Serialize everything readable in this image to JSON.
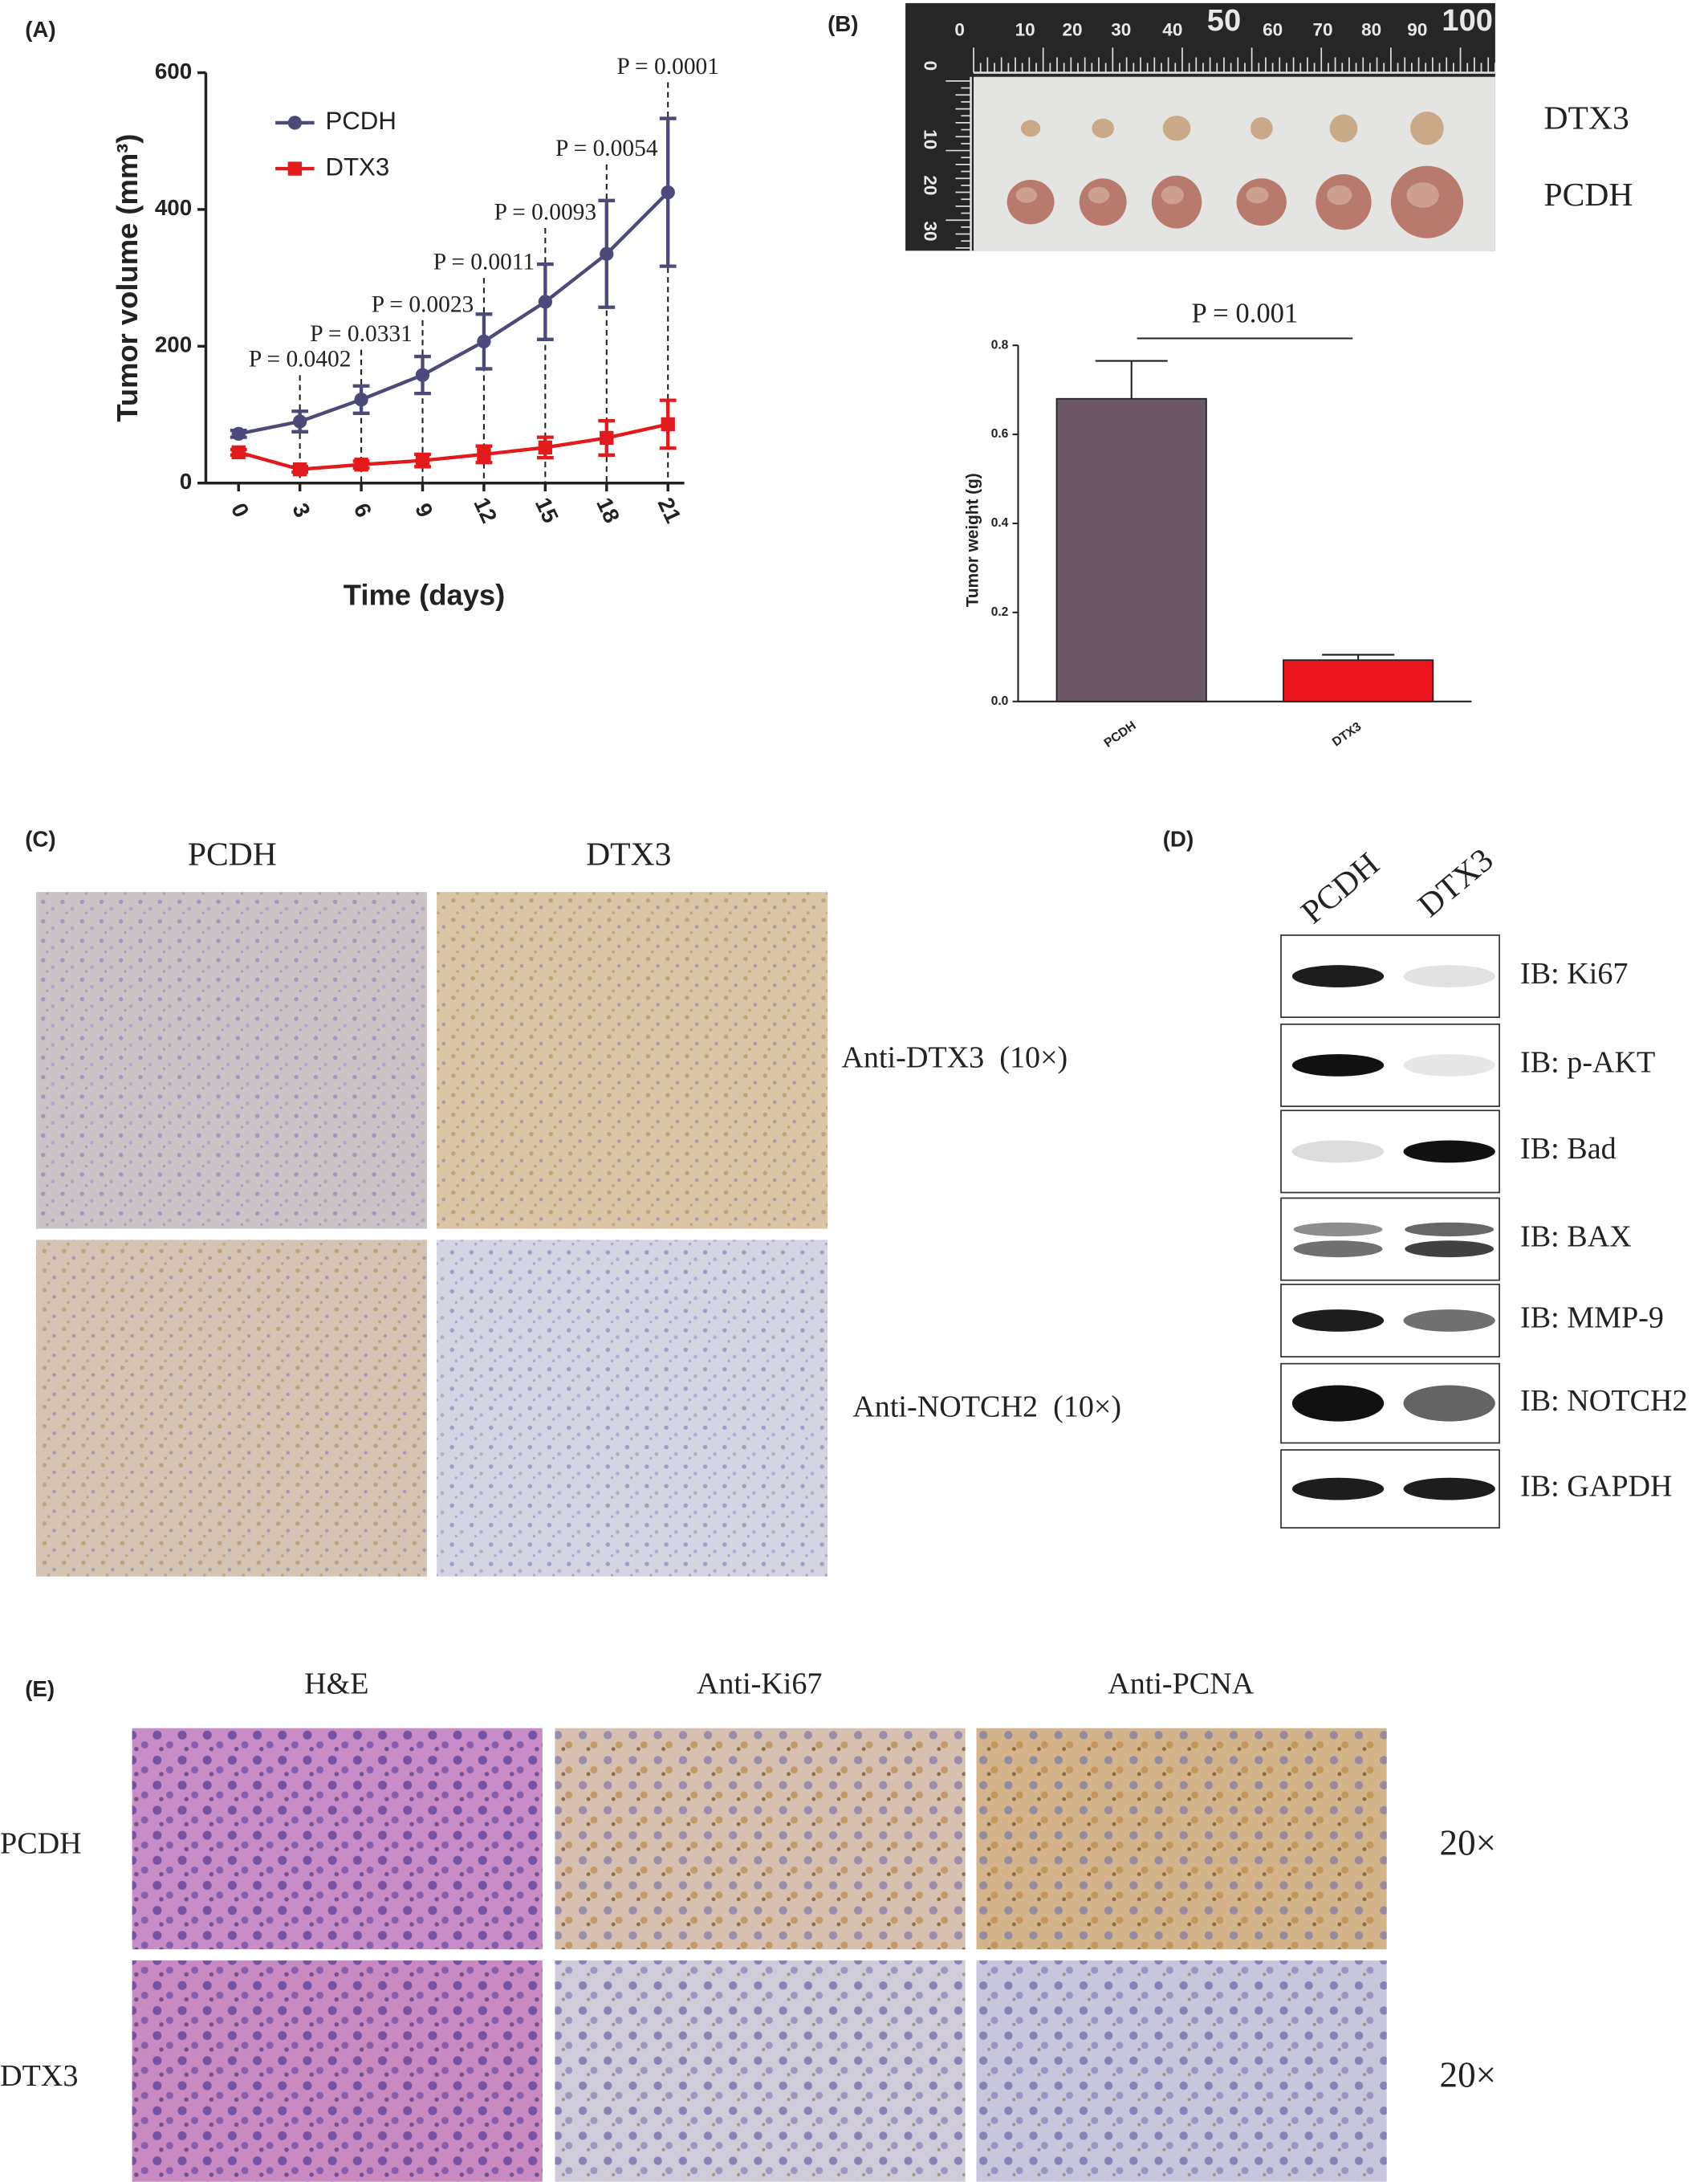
{
  "panel_labels": [
    "(A)",
    "(B)",
    "(C)",
    "(D)",
    "(E)"
  ],
  "chart_data": [
    {
      "type": "line",
      "ylabel": "Tumor volume (mm³)",
      "xlabel": "Time (days)",
      "x": [
        0,
        3,
        6,
        9,
        12,
        15,
        18,
        21
      ],
      "xlim": [
        -1.6,
        21.8
      ],
      "xticks": [
        0,
        3,
        6,
        9,
        12,
        15,
        18,
        21
      ],
      "ylim": [
        0,
        600
      ],
      "yticks": [
        0,
        200,
        400,
        600
      ],
      "legend": "upper left",
      "series": [
        {
          "name": "PCDH",
          "color": "#4b4a78",
          "marker": "circle",
          "values": [
            72,
            90,
            122,
            158,
            207,
            265,
            335,
            425
          ],
          "errors": [
            5,
            15,
            20,
            27,
            40,
            55,
            78,
            108
          ]
        },
        {
          "name": "DTX3",
          "color": "#e31a1c",
          "marker": "square",
          "values": [
            45,
            20,
            27,
            33,
            42,
            52,
            66,
            86
          ],
          "errors": [
            4,
            4,
            5,
            9,
            12,
            15,
            25,
            35
          ]
        }
      ],
      "annotations": [
        {
          "x": 3,
          "text": "P = 0.0402"
        },
        {
          "x": 6,
          "text": "P = 0.0331"
        },
        {
          "x": 9,
          "text": "P = 0.0023"
        },
        {
          "x": 12,
          "text": "P = 0.0011"
        },
        {
          "x": 15,
          "text": "P = 0.0093"
        },
        {
          "x": 18,
          "text": "P = 0.0054"
        },
        {
          "x": 21,
          "text": "P = 0.0001"
        }
      ]
    },
    {
      "type": "bar",
      "ylabel": "Tumor weight (g)",
      "categories": [
        "PCDH",
        "DTX3"
      ],
      "values": [
        0.68,
        0.093
      ],
      "errors": [
        0.085,
        0.012
      ],
      "colors": [
        "#6b5866",
        "#e8141e"
      ],
      "ylim": [
        0,
        0.8
      ],
      "yticks": [
        {
          "value": 0,
          "label": "0.0"
        },
        0.2,
        0.4,
        0.6,
        0.8
      ],
      "annotation": "P = 0.001"
    }
  ],
  "photo": {
    "ruler_top": [
      "0",
      "10",
      "20",
      "30",
      "40",
      "50",
      "60",
      "70",
      "80",
      "90",
      "100"
    ],
    "ruler_left": [
      "0",
      "10",
      "20",
      "30"
    ],
    "row_labels": [
      "DTX3",
      "PCDH"
    ]
  },
  "ihc": {
    "columns": [
      "PCDH",
      "DTX3"
    ],
    "rows": [
      "Anti-DTX3  (10×)",
      "Anti-NOTCH2  (10×)"
    ]
  },
  "western": {
    "lanes": [
      "PCDH",
      "DTX3"
    ],
    "rows": [
      "IB: Ki67",
      "IB: p-AKT",
      "IB: Bad",
      "IB: BAX",
      "IB: MMP-9",
      "IB: NOTCH2",
      "IB: GAPDH"
    ]
  },
  "staining": {
    "columns": [
      "H&E",
      "Anti-Ki67",
      "Anti-PCNA"
    ],
    "rows": [
      "PCDH",
      "DTX3"
    ],
    "magnification": [
      "20×",
      "20×"
    ]
  }
}
